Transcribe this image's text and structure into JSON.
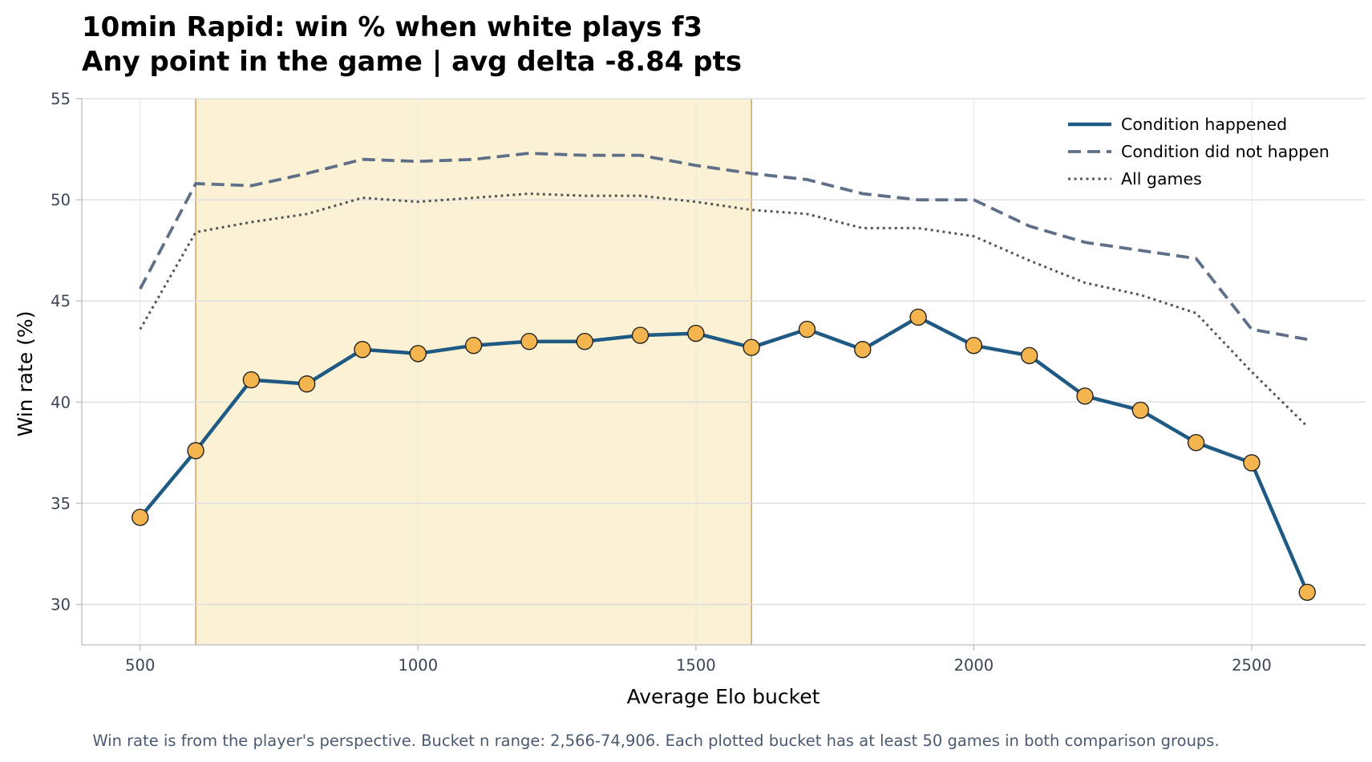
{
  "chart_data": {
    "type": "line",
    "title_lines": [
      "10min Rapid: win % when white plays f3",
      "Any point in the game | avg delta -8.84 pts"
    ],
    "xlabel": "Average Elo bucket",
    "ylabel": "Win rate (%)",
    "footnote": "Win rate is from the player's perspective. Bucket n range: 2,566-74,906. Each plotted bucket has at least 50 games in both comparison groups.",
    "xlim": [
      395,
      2705
    ],
    "ylim": [
      28,
      55
    ],
    "x_ticks": [
      500,
      1000,
      1500,
      2000,
      2500
    ],
    "x_tick_labels": [
      "500",
      "1000",
      "1500",
      "2000",
      "2500"
    ],
    "y_ticks": [
      30,
      35,
      40,
      45,
      50,
      55
    ],
    "y_tick_labels": [
      "30",
      "35",
      "40",
      "45",
      "50",
      "55"
    ],
    "grid": true,
    "highlight_band": {
      "x_start": 600,
      "x_end": 1600,
      "color": "#fbf1d4",
      "edge_color": "#d4a86a"
    },
    "legend_position": "top-right",
    "x": [
      500,
      600,
      700,
      800,
      900,
      1000,
      1100,
      1200,
      1300,
      1400,
      1500,
      1600,
      1700,
      1800,
      1900,
      2000,
      2100,
      2200,
      2300,
      2400,
      2500,
      2600
    ],
    "series": [
      {
        "name": "Condition happened",
        "style": "solid",
        "color": "#1f5a85",
        "marker_color": "#f4b54e",
        "values": [
          34.3,
          37.6,
          41.1,
          40.9,
          42.6,
          42.4,
          42.8,
          43.0,
          43.0,
          43.3,
          43.4,
          42.7,
          43.6,
          42.6,
          44.2,
          42.8,
          42.3,
          40.3,
          39.6,
          38.0,
          37.0,
          30.6
        ]
      },
      {
        "name": "Condition did not happen",
        "style": "dashed",
        "color": "#5f6f87",
        "values": [
          45.6,
          50.8,
          50.7,
          51.3,
          52.0,
          51.9,
          52.0,
          52.3,
          52.2,
          52.2,
          51.7,
          51.3,
          51.0,
          50.3,
          50.0,
          50.0,
          48.7,
          47.9,
          47.5,
          47.1,
          43.6,
          43.1
        ]
      },
      {
        "name": "All games",
        "style": "dotted",
        "color": "#555555",
        "values": [
          43.6,
          48.4,
          48.9,
          49.3,
          50.1,
          49.9,
          50.1,
          50.3,
          50.2,
          50.2,
          49.9,
          49.5,
          49.3,
          48.6,
          48.6,
          48.2,
          47.0,
          45.9,
          45.3,
          44.4,
          41.5,
          38.8
        ]
      }
    ],
    "colors": {
      "axis": "#b8bcc4",
      "grid": "#d9dce1",
      "tick_text": "#3a4454",
      "footnote_text": "#4a5a70"
    }
  }
}
